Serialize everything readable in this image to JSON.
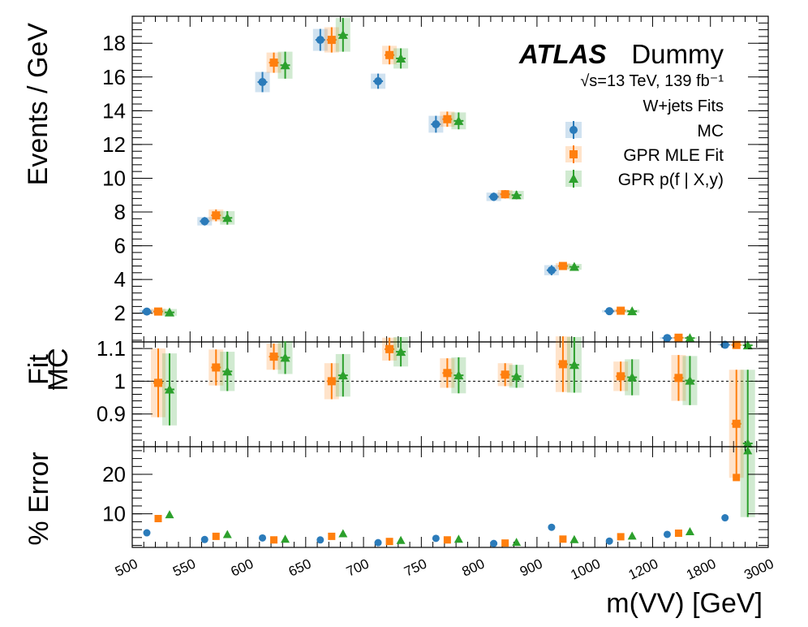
{
  "colors": {
    "mc": "#2b7bba",
    "mle": "#ff7f0e",
    "post": "#2ca02c",
    "frame": "#000000"
  },
  "labels": {
    "atlas": "ATLAS",
    "dummy": "Dummy",
    "energy": "√s=13 TeV, 139 fb⁻¹",
    "title": "W+jets Fits"
  },
  "chart_data": [
    {
      "type": "scatter",
      "panel": "main",
      "ylabel": "Events / GeV",
      "ylim": [
        0.3,
        19.6
      ],
      "yticks": [
        2,
        4,
        6,
        8,
        10,
        12,
        14,
        16,
        18
      ],
      "x_bins": [
        "500-550",
        "550-600",
        "600-650",
        "650-700",
        "700-750",
        "750-800",
        "800-900",
        "900-1000",
        "1000-1200",
        "1200-1800",
        "1800-3000"
      ],
      "series": [
        {
          "name": "MC",
          "values": [
            2.1,
            7.45,
            15.7,
            18.2,
            15.75,
            13.2,
            8.9,
            4.55,
            2.12,
            0.53,
            0.13
          ],
          "errors": [
            0.11,
            0.25,
            0.6,
            0.65,
            0.45,
            0.5,
            0.25,
            0.3,
            0.07,
            0.05,
            0.02
          ]
        },
        {
          "name": "GPR MLE Fit",
          "values": [
            2.1,
            7.8,
            16.85,
            18.2,
            17.3,
            13.5,
            9.05,
            4.8,
            2.15,
            0.55,
            0.12
          ],
          "errors": [
            0.18,
            0.35,
            0.6,
            0.75,
            0.55,
            0.45,
            0.25,
            0.17,
            0.09,
            0.03,
            0.02
          ]
        },
        {
          "name": "GPR p(f | X,y)",
          "values": [
            2.05,
            7.65,
            16.7,
            18.5,
            17.1,
            13.4,
            9.0,
            4.75,
            2.12,
            0.53,
            0.1
          ],
          "errors": [
            0.2,
            0.4,
            0.8,
            1.0,
            0.6,
            0.5,
            0.25,
            0.17,
            0.09,
            0.03,
            0.02
          ]
        }
      ],
      "legend": [
        "MC",
        "GPR MLE Fit",
        "GPR p(f | X,y)"
      ],
      "legend_position": "top-right"
    },
    {
      "type": "scatter",
      "panel": "ratio",
      "ylabel_num": "Fit",
      "ylabel_den": "MC",
      "ylim": [
        0.8,
        1.12
      ],
      "yticks": [
        0.9,
        1,
        1.1
      ],
      "ytick_labels": [
        "0.9",
        "1",
        "1.1"
      ],
      "reference_line": 1.0,
      "series": [
        {
          "name": "GPR MLE Fit",
          "values": [
            0.995,
            1.042,
            1.075,
            1.0,
            1.098,
            1.025,
            1.02,
            1.052,
            1.015,
            1.01,
            0.87
          ],
          "errors": [
            0.105,
            0.055,
            0.04,
            0.055,
            0.035,
            0.045,
            0.035,
            0.085,
            0.045,
            0.07,
            0.165
          ]
        },
        {
          "name": "GPR p(f | X,y)",
          "values": [
            0.975,
            1.03,
            1.072,
            1.018,
            1.09,
            1.018,
            1.015,
            1.05,
            1.012,
            1.002,
            0.81
          ],
          "errors": [
            0.11,
            0.06,
            0.05,
            0.065,
            0.045,
            0.055,
            0.035,
            0.085,
            0.055,
            0.075,
            0.225
          ]
        }
      ]
    },
    {
      "type": "scatter",
      "panel": "error",
      "ylabel": "% Error",
      "ylim": [
        1.5,
        27
      ],
      "yticks": [
        10,
        20
      ],
      "series": [
        {
          "name": "MC",
          "values": [
            5.2,
            3.5,
            3.9,
            3.4,
            2.7,
            3.8,
            2.5,
            6.6,
            3.1,
            4.8,
            9.0
          ]
        },
        {
          "name": "GPR MLE Fit",
          "values": [
            8.8,
            4.3,
            3.4,
            4.3,
            3.0,
            3.4,
            2.6,
            3.6,
            4.2,
            5.1,
            19.2
          ]
        },
        {
          "name": "GPR p(f | X,y)",
          "values": [
            9.8,
            4.8,
            3.6,
            5.0,
            3.3,
            3.6,
            2.8,
            3.5,
            4.4,
            5.5,
            26.0
          ]
        }
      ],
      "xlabel": "m(VV) [GeV]",
      "xtick_labels": [
        "500",
        "550",
        "600",
        "650",
        "700",
        "750",
        "800",
        "900",
        "1000",
        "1200",
        "1800",
        "3000"
      ]
    }
  ]
}
